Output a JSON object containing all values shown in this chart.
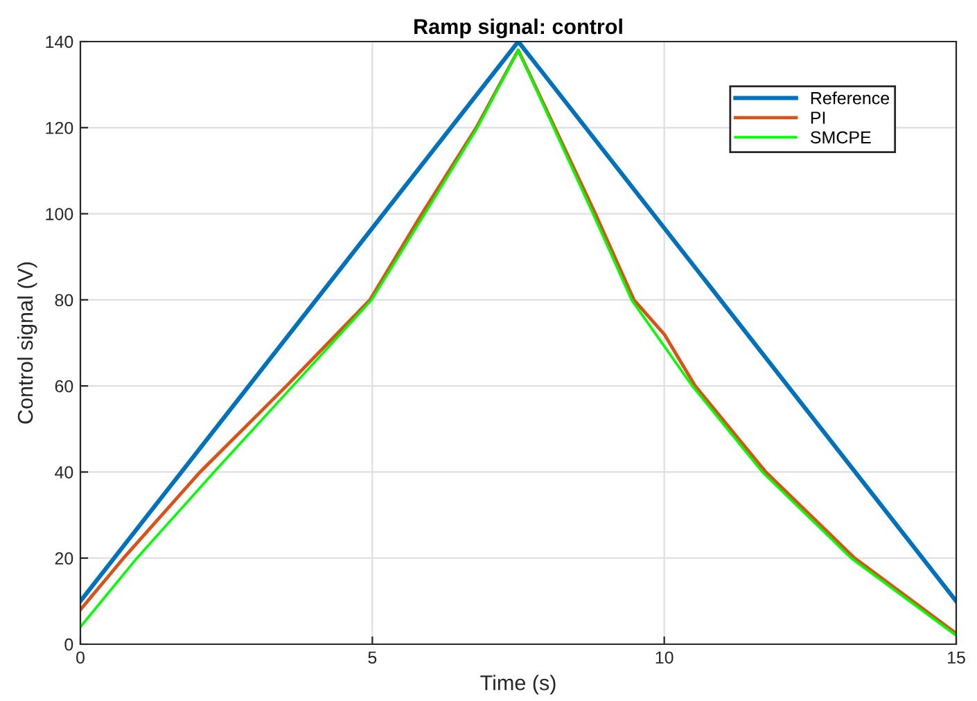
{
  "chart_data": {
    "type": "line",
    "title": "Ramp signal: control",
    "xlabel": "Time (s)",
    "ylabel": "Control signal (V)",
    "xlim": [
      0,
      15
    ],
    "ylim": [
      0,
      140
    ],
    "xticks": [
      0,
      5,
      10,
      15
    ],
    "yticks": [
      0,
      20,
      40,
      60,
      80,
      100,
      120,
      140
    ],
    "grid": true,
    "legend": "top right",
    "series": [
      {
        "name": "Reference",
        "color": "#0072bd",
        "x": [
          0,
          7.5,
          15
        ],
        "values": [
          10,
          140,
          10
        ]
      },
      {
        "name": "PI",
        "color": "#d95319",
        "x": [
          0,
          0.74,
          2.05,
          3.53,
          4.96,
          5.85,
          6.78,
          7.5,
          8.82,
          9.48,
          10,
          10.53,
          11.74,
          13.26,
          15
        ],
        "values": [
          8,
          20,
          40,
          60,
          80,
          100,
          120,
          138,
          100,
          80,
          72,
          60,
          40,
          20,
          2.5
        ]
      },
      {
        "name": "SMCPE",
        "color": "#00ff00",
        "x": [
          0,
          0.97,
          2.29,
          3.64,
          4.99,
          5.9,
          6.8,
          7.5,
          8.78,
          9.44,
          10.48,
          11.68,
          13.2,
          15
        ],
        "values": [
          4,
          20,
          40,
          60,
          80,
          100,
          120,
          138,
          100,
          80,
          60,
          40,
          20,
          2
        ]
      }
    ]
  }
}
